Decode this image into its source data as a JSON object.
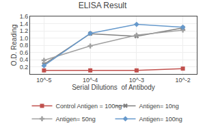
{
  "chart_data": {
    "type": "line",
    "title": "ELISA Result",
    "xlabel": "Serial Dilutions  of Antibody",
    "ylabel": "O.D. Reading",
    "x": [
      0.01,
      0.001,
      0.0001,
      1e-05
    ],
    "series": [
      {
        "name": "Control Antigen = 100ng",
        "color": "#c0504d",
        "marker": "square",
        "values": [
          0.15,
          0.1,
          0.1,
          0.1
        ]
      },
      {
        "name": "Antigen= 10ng",
        "color": "#808080",
        "marker": "x",
        "values": [
          1.28,
          1.05,
          1.12,
          0.27
        ]
      },
      {
        "name": "Antigen= 50ng",
        "color": "#a0a0a0",
        "marker": "cross",
        "values": [
          1.22,
          1.08,
          0.78,
          0.38
        ]
      },
      {
        "name": "Antigen= 100ng",
        "color": "#6699cc",
        "marker": "diamond",
        "values": [
          1.3,
          1.38,
          1.13,
          0.23
        ]
      }
    ],
    "log": "x",
    "xlim": [
      5e-06,
      0.02
    ],
    "xticks": [
      {
        "value": 0.01,
        "label": "10^-2"
      },
      {
        "value": 0.001,
        "label": "10^-3"
      },
      {
        "value": 0.0001,
        "label": "10^-4"
      },
      {
        "value": 1e-05,
        "label": "10^-5"
      }
    ],
    "ylim": [
      0,
      1.6
    ],
    "yticks": [
      0.2,
      0.4,
      0.6,
      0.8,
      {
        "value": 1.0,
        "label": "1.0"
      },
      1.2,
      1.4,
      1.6
    ],
    "grid": true,
    "legend": "bottom"
  }
}
